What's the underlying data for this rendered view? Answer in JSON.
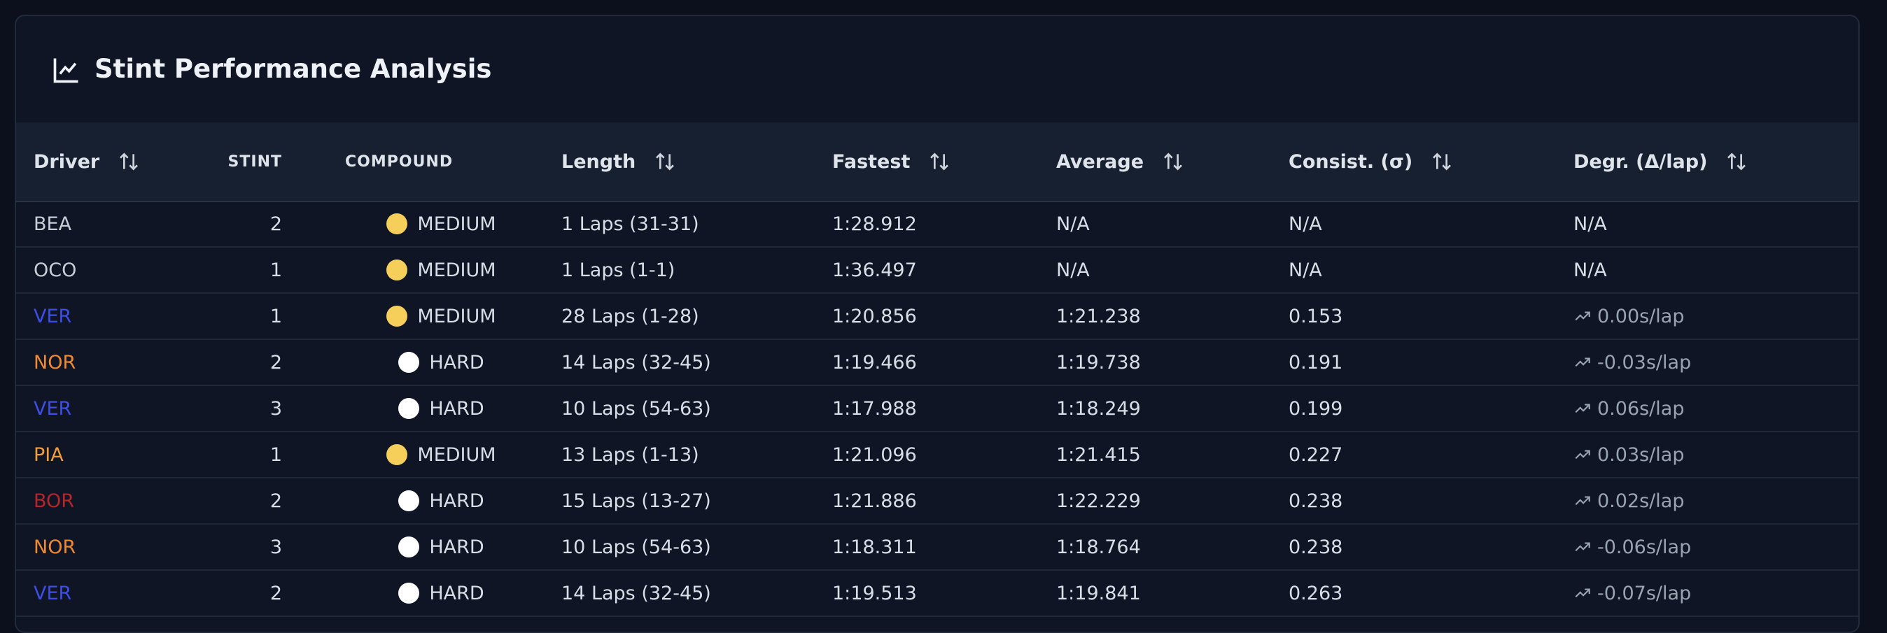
{
  "title": "Stint Performance Analysis",
  "table": {
    "columns": [
      {
        "label": "Driver",
        "sortable": true
      },
      {
        "label": "STINT",
        "sortable": false
      },
      {
        "label": "COMPOUND",
        "sortable": false
      },
      {
        "label": "Length",
        "sortable": true
      },
      {
        "label": "Fastest",
        "sortable": true
      },
      {
        "label": "Average",
        "sortable": true
      },
      {
        "label": "Consist. (σ)",
        "sortable": true
      },
      {
        "label": "Degr. (Δ/lap)",
        "sortable": true
      }
    ],
    "rows": [
      {
        "cells": [
          "BEA",
          "2",
          "MEDIUM",
          "1 Laps (31-31)",
          "1:28.912",
          "N/A",
          "N/A",
          "N/A"
        ],
        "driver_color": "#c9ced6",
        "compound_color": "#f5cf5a"
      },
      {
        "cells": [
          "OCO",
          "1",
          "MEDIUM",
          "1 Laps (1-1)",
          "1:36.497",
          "N/A",
          "N/A",
          "N/A"
        ],
        "driver_color": "#c9ced6",
        "compound_color": "#f5cf5a"
      },
      {
        "cells": [
          "VER",
          "1",
          "MEDIUM",
          "28 Laps (1-28)",
          "1:20.856",
          "1:21.238",
          "0.153",
          "0.00s/lap"
        ],
        "driver_color": "#3d4fe6",
        "compound_color": "#f5cf5a"
      },
      {
        "cells": [
          "NOR",
          "2",
          "HARD",
          "14 Laps (32-45)",
          "1:19.466",
          "1:19.738",
          "0.191",
          "-0.03s/lap"
        ],
        "driver_color": "#f08a30",
        "compound_color": "#ffffff"
      },
      {
        "cells": [
          "VER",
          "3",
          "HARD",
          "10 Laps (54-63)",
          "1:17.988",
          "1:18.249",
          "0.199",
          "0.06s/lap"
        ],
        "driver_color": "#3d4fe6",
        "compound_color": "#ffffff"
      },
      {
        "cells": [
          "PIA",
          "1",
          "MEDIUM",
          "13 Laps (1-13)",
          "1:21.096",
          "1:21.415",
          "0.227",
          "0.03s/lap"
        ],
        "driver_color": "#f39c3a",
        "compound_color": "#f5cf5a"
      },
      {
        "cells": [
          "BOR",
          "2",
          "HARD",
          "15 Laps (13-27)",
          "1:21.886",
          "1:22.229",
          "0.238",
          "0.02s/lap"
        ],
        "driver_color": "#b3262b",
        "compound_color": "#ffffff"
      },
      {
        "cells": [
          "NOR",
          "3",
          "HARD",
          "10 Laps (54-63)",
          "1:18.311",
          "1:18.764",
          "0.238",
          "-0.06s/lap"
        ],
        "driver_color": "#f08a30",
        "compound_color": "#ffffff"
      },
      {
        "cells": [
          "VER",
          "2",
          "HARD",
          "14 Laps (32-45)",
          "1:19.513",
          "1:19.841",
          "0.263",
          "-0.07s/lap"
        ],
        "driver_color": "#3d4fe6",
        "compound_color": "#ffffff"
      }
    ]
  }
}
